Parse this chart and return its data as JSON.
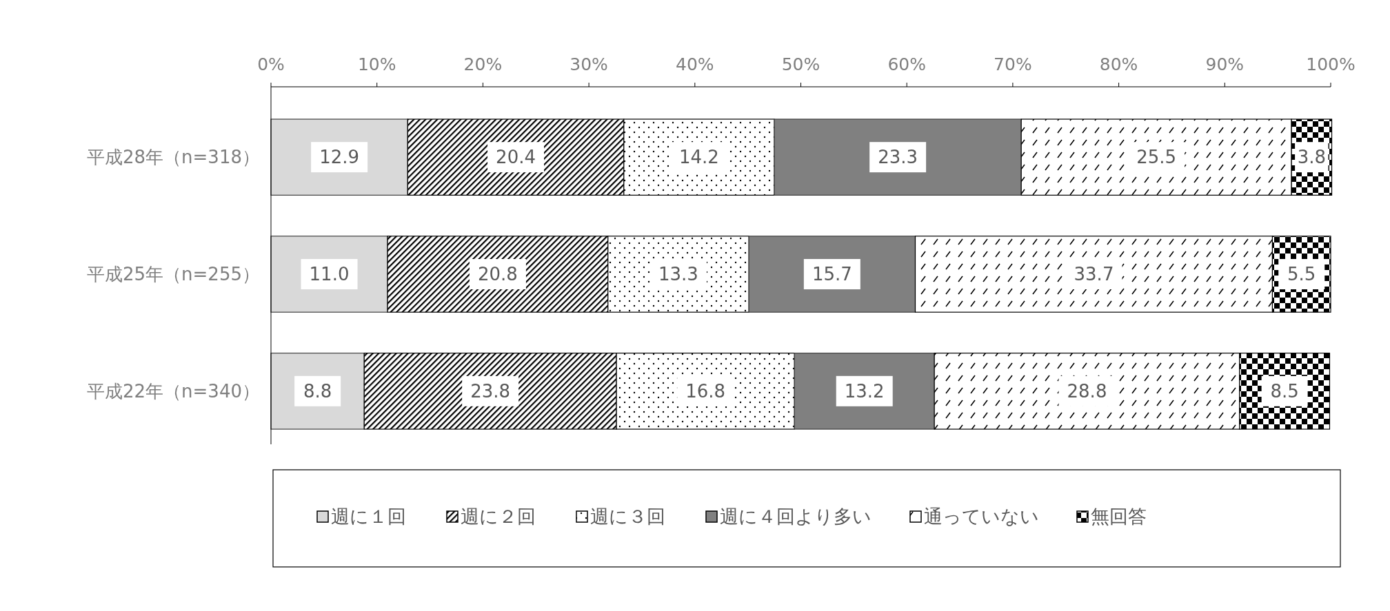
{
  "chart_data": {
    "type": "bar",
    "orientation": "horizontal",
    "stacked": true,
    "categories": [
      "平成28年（n=318）",
      "平成25年（n=255）",
      "平成22年（n=340）"
    ],
    "xlim": [
      0,
      100
    ],
    "xticks": [
      {
        "value": 0,
        "label": "0%"
      },
      {
        "value": 10,
        "label": "10%"
      },
      {
        "value": 20,
        "label": "20%"
      },
      {
        "value": 30,
        "label": "30%"
      },
      {
        "value": 40,
        "label": "40%"
      },
      {
        "value": 50,
        "label": "50%"
      },
      {
        "value": 60,
        "label": "60%"
      },
      {
        "value": 70,
        "label": "70%"
      },
      {
        "value": 80,
        "label": "80%"
      },
      {
        "value": 90,
        "label": "90%"
      },
      {
        "value": 100,
        "label": "100%"
      }
    ],
    "legend": "bottom",
    "series": [
      {
        "name": "週に１回",
        "color": "#d9d9d9",
        "values": [
          12.9,
          11.0,
          8.8
        ],
        "value_labels": [
          "12.9",
          "11.0",
          "8.8"
        ]
      },
      {
        "name": "週に２回",
        "color": "#000000",
        "values": [
          20.4,
          20.8,
          23.8
        ],
        "value_labels": [
          "20.4",
          "20.8",
          "23.8"
        ]
      },
      {
        "name": "週に３回",
        "color": "#000000",
        "values": [
          14.2,
          13.3,
          16.8
        ],
        "value_labels": [
          "14.2",
          "13.3",
          "16.8"
        ]
      },
      {
        "name": "週に４回より多い",
        "color": "#808080",
        "values": [
          23.3,
          15.7,
          13.2
        ],
        "value_labels": [
          "23.3",
          "15.7",
          "13.2"
        ]
      },
      {
        "name": "通っていない",
        "color": "#000000",
        "values": [
          25.5,
          33.7,
          28.8
        ],
        "value_labels": [
          "25.5",
          "33.7",
          "28.8"
        ]
      },
      {
        "name": "無回答",
        "color": "#000000",
        "values": [
          3.8,
          5.5,
          8.5
        ],
        "value_labels": [
          "3.8",
          "5.5",
          "8.5"
        ]
      }
    ]
  }
}
